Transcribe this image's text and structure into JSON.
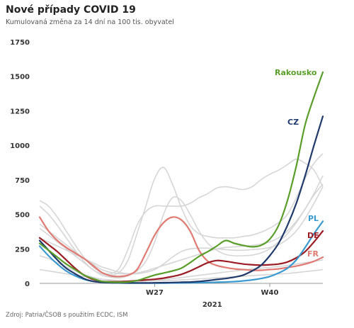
{
  "header": {
    "title": "Nové případy COVID 19",
    "subtitle": "Kumulovaná změna za 14 dní na 100 tis. obyvatel"
  },
  "footer": {
    "source": "Zdroj: Patria/ČSOB s použitím ECDC, ISM"
  },
  "chart_data": {
    "type": "line",
    "title": "Nové případy COVID 19",
    "subtitle": "Kumulovaná změna za 14 dní na 100 tis. obyvatel",
    "xlabel": "2021",
    "ylabel": "",
    "ylim": [
      0,
      1750
    ],
    "yticks": [
      0,
      250,
      500,
      750,
      1000,
      1250,
      1500,
      1750
    ],
    "y_tick_labels": [
      "0",
      "250",
      "500",
      "750",
      "1000",
      "1250",
      "1500",
      "1750"
    ],
    "x_weeks": [
      14,
      15,
      16,
      17,
      18,
      19,
      20,
      21,
      22,
      23,
      24,
      25,
      26,
      27,
      28,
      29,
      30,
      31,
      32,
      33,
      34,
      35,
      36,
      37,
      38,
      39,
      40,
      41,
      42,
      43,
      44,
      45,
      46
    ],
    "x_ticks": [
      {
        "week": 27,
        "label": "W27"
      },
      {
        "week": 40,
        "label": "W40"
      }
    ],
    "grid": false,
    "legend": "inline labels at line ends",
    "series": [
      {
        "name": "Rakousko",
        "color": "#5a9e2a",
        "width": 2.2,
        "values": [
          290,
          240,
          190,
          140,
          100,
          60,
          35,
          15,
          10,
          8,
          10,
          20,
          40,
          60,
          75,
          90,
          110,
          150,
          195,
          230,
          270,
          310,
          290,
          275,
          265,
          275,
          320,
          420,
          600,
          850,
          1150,
          1350,
          1530
        ]
      },
      {
        "name": "CZ",
        "color": "#1f3a6b",
        "width": 2.2,
        "values": [
          310,
          240,
          170,
          110,
          70,
          35,
          15,
          8,
          5,
          4,
          3,
          3,
          3,
          4,
          5,
          6,
          8,
          10,
          14,
          20,
          28,
          35,
          45,
          60,
          90,
          130,
          200,
          290,
          420,
          580,
          780,
          1000,
          1210
        ]
      },
      {
        "name": "PL",
        "color": "#3a9ad0",
        "width": 2.2,
        "values": [
          270,
          200,
          140,
          90,
          55,
          30,
          15,
          8,
          5,
          3,
          2,
          2,
          2,
          2,
          2,
          3,
          3,
          4,
          5,
          6,
          8,
          10,
          13,
          18,
          25,
          35,
          50,
          75,
          110,
          170,
          260,
          360,
          450
        ]
      },
      {
        "name": "DE",
        "color": "#9b1c24",
        "width": 2.2,
        "values": [
          330,
          280,
          230,
          170,
          110,
          60,
          30,
          15,
          12,
          12,
          15,
          20,
          25,
          30,
          38,
          50,
          65,
          90,
          120,
          150,
          165,
          160,
          150,
          140,
          135,
          132,
          135,
          140,
          155,
          185,
          230,
          300,
          380
        ]
      },
      {
        "name": "FR",
        "color": "#e07a73",
        "width": 2.2,
        "values": [
          480,
          380,
          310,
          260,
          220,
          180,
          130,
          80,
          55,
          50,
          60,
          100,
          220,
          350,
          440,
          480,
          460,
          380,
          240,
          160,
          130,
          115,
          105,
          100,
          95,
          95,
          100,
          105,
          115,
          125,
          140,
          160,
          190
        ]
      }
    ],
    "background_series": [
      {
        "color": "#d6d6d6",
        "values": [
          600,
          560,
          480,
          380,
          280,
          190,
          120,
          80,
          70,
          110,
          250,
          420,
          520,
          560,
          560,
          560,
          560,
          580,
          620,
          650,
          690,
          700,
          690,
          680,
          700,
          750,
          790,
          820,
          860,
          900,
          870,
          820,
          700
        ]
      },
      {
        "color": "#d6d6d6",
        "values": [
          560,
          500,
          420,
          330,
          240,
          160,
          100,
          70,
          60,
          80,
          170,
          360,
          560,
          760,
          840,
          720,
          550,
          420,
          360,
          340,
          330,
          330,
          330,
          340,
          350,
          370,
          400,
          440,
          500,
          620,
          760,
          870,
          940
        ]
      },
      {
        "color": "#d6d6d6",
        "values": [
          400,
          350,
          300,
          250,
          200,
          150,
          100,
          60,
          45,
          40,
          55,
          90,
          160,
          300,
          500,
          620,
          600,
          500,
          380,
          290,
          240,
          210,
          200,
          200,
          205,
          220,
          250,
          300,
          360,
          440,
          540,
          640,
          720
        ]
      },
      {
        "color": "#d6d6d6",
        "values": [
          330,
          300,
          270,
          240,
          210,
          180,
          150,
          120,
          100,
          80,
          70,
          70,
          80,
          100,
          140,
          190,
          230,
          250,
          255,
          255,
          250,
          245,
          240,
          240,
          245,
          250,
          260,
          280,
          320,
          380,
          470,
          580,
          700
        ]
      },
      {
        "color": "#d6d6d6",
        "values": [
          430,
          380,
          330,
          280,
          230,
          180,
          140,
          100,
          80,
          70,
          70,
          75,
          90,
          110,
          130,
          150,
          170,
          190,
          210,
          230,
          250,
          260,
          265,
          270,
          275,
          285,
          300,
          330,
          380,
          450,
          540,
          650,
          780
        ]
      },
      {
        "color": "#d6d6d6",
        "values": [
          200,
          180,
          150,
          120,
          90,
          65,
          45,
          30,
          22,
          18,
          16,
          16,
          18,
          22,
          28,
          35,
          42,
          50,
          58,
          66,
          74,
          82,
          90,
          98,
          105,
          110,
          115,
          122,
          130,
          140,
          150,
          160,
          170
        ]
      },
      {
        "color": "#d6d6d6",
        "values": [
          100,
          90,
          80,
          70,
          60,
          50,
          40,
          30,
          25,
          20,
          18,
          17,
          17,
          18,
          20,
          22,
          25,
          28,
          32,
          36,
          40,
          44,
          48,
          52,
          56,
          60,
          64,
          68,
          72,
          78,
          85,
          92,
          100
        ]
      }
    ]
  }
}
